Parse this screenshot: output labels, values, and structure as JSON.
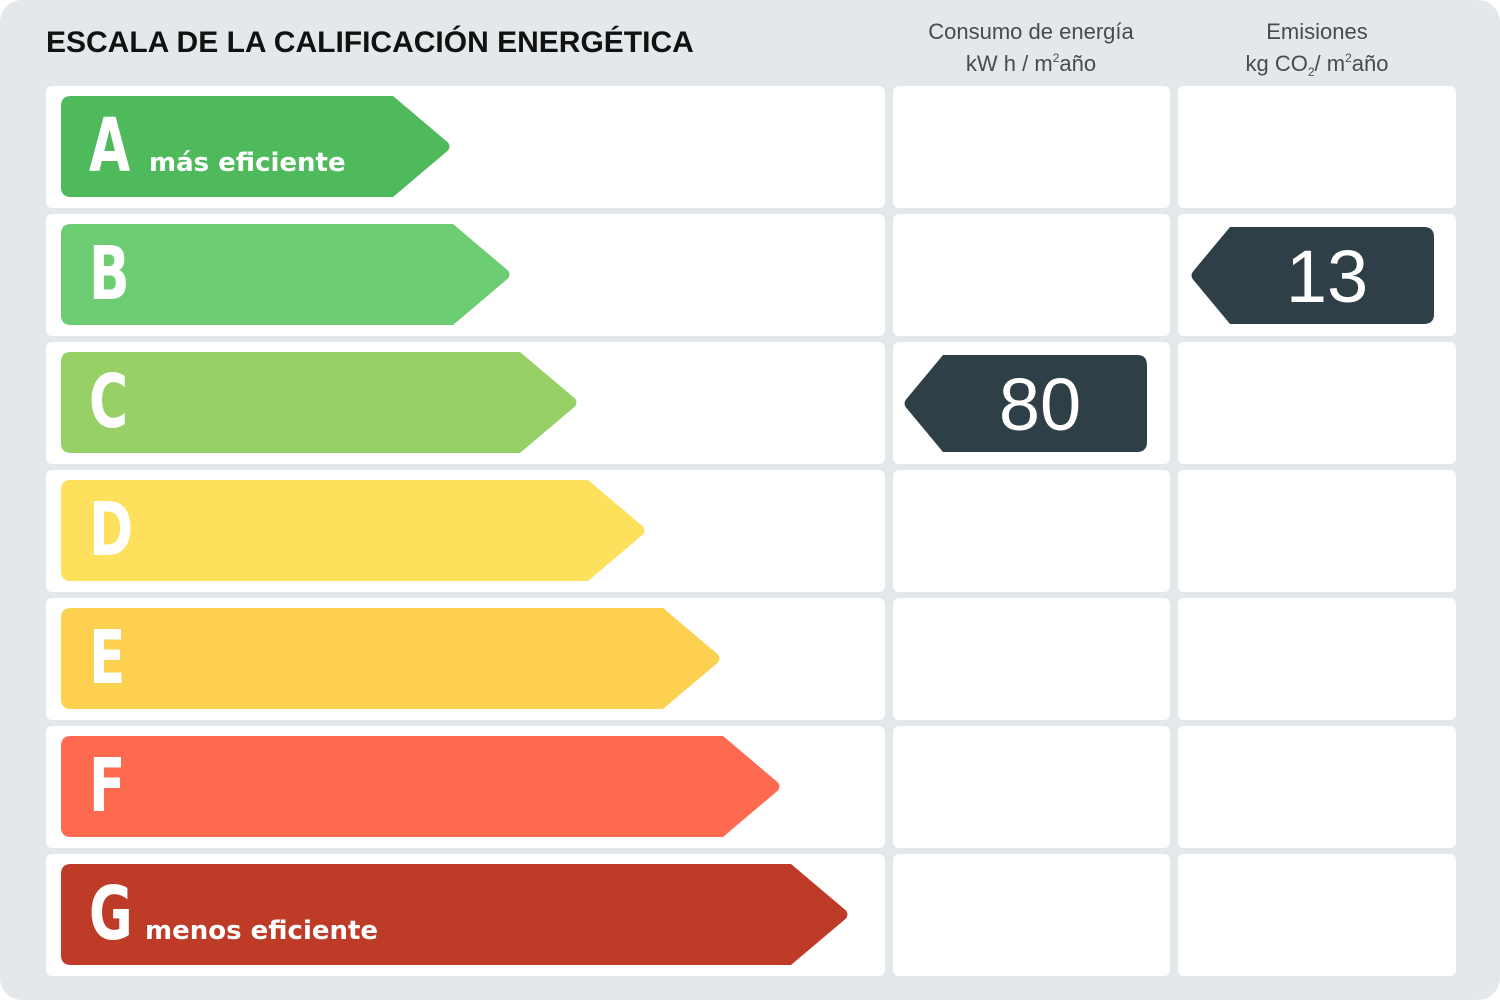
{
  "title": "ESCALA DE LA CALIFICACIÓN ENERGÉTICA",
  "columns": {
    "consumo": {
      "line1": "Consumo de energía",
      "unit_a": "kW h / m",
      "unit_sup": "2",
      "unit_b": "año"
    },
    "emisiones": {
      "line1": "Emisiones",
      "unit_a": "kg CO",
      "unit_sub": "2",
      "unit_mid": "/ m",
      "unit_sup": "2",
      "unit_b": "año"
    }
  },
  "ratings": [
    {
      "letter": "A",
      "label": "más eficiente",
      "color": "#4fba5b"
    },
    {
      "letter": "B",
      "label": "",
      "color": "#6dcd72"
    },
    {
      "letter": "C",
      "label": "",
      "color": "#98d068"
    },
    {
      "letter": "D",
      "label": "",
      "color": "#fde05c"
    },
    {
      "letter": "E",
      "label": "",
      "color": "#fdd04f"
    },
    {
      "letter": "F",
      "label": "",
      "color": "#fe6a50"
    },
    {
      "letter": "G",
      "label": "menos eficiente",
      "color": "#be3b27"
    }
  ],
  "consumo_value": {
    "value": "80",
    "rating": "C"
  },
  "emisiones_value": {
    "value": "13",
    "rating": "B"
  },
  "indicator_color": "#2f3f47"
}
